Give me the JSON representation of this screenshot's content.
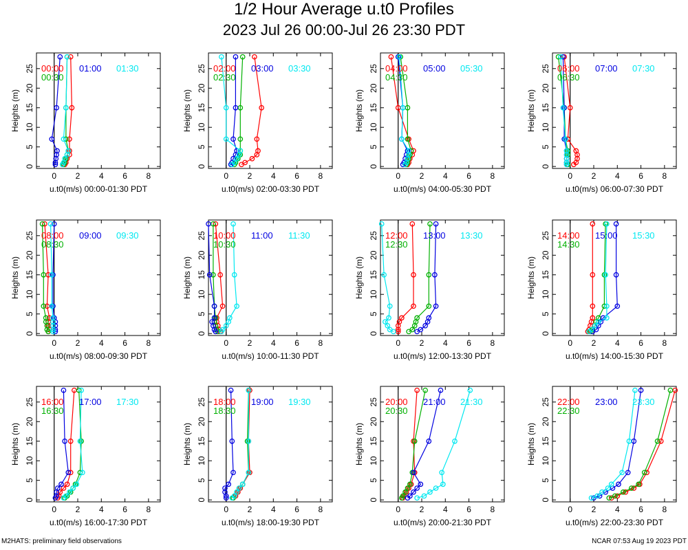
{
  "title": "1/2 Hour Average u.t0 Profiles",
  "subtitle": "2023 Jul 26 00:00-Jul 26 23:30 PDT",
  "footer_left": "M2HATS: preliminary field observations",
  "footer_right": "NCAR 07:53 Aug 19 2023 PDT",
  "colors": {
    "red": "#ff0000",
    "green": "#00b000",
    "blue": "#0000e0",
    "cyan": "#00e8f0"
  },
  "chart_data": [
    {
      "type": "line",
      "xlabel": "u.t0(m/s) 00:00-01:30 PDT",
      "ylabel": "Heights (m)",
      "xlim": [
        -1.5,
        9
      ],
      "ylim": [
        -0.5,
        29
      ],
      "x_ticks": [
        0,
        2,
        4,
        6,
        8
      ],
      "y_ticks": [
        0,
        5,
        10,
        15,
        20,
        25
      ],
      "heights": [
        0.5,
        1,
        2,
        3,
        4,
        7,
        15,
        28
      ],
      "series": [
        {
          "name": "00:00",
          "color": "red",
          "values": [
            0.9,
            1.0,
            1.1,
            1.3,
            1.3,
            1.3,
            1.5,
            1.4
          ]
        },
        {
          "name": "00:30",
          "color": "green",
          "values": [
            0.8,
            0.9,
            1.0,
            1.1,
            1.2,
            1.0,
            1.0,
            1.1
          ]
        },
        {
          "name": "01:00",
          "color": "blue",
          "values": [
            0.1,
            0.1,
            0.15,
            0.2,
            0.25,
            -0.2,
            0.2,
            0.5
          ]
        },
        {
          "name": "01:30",
          "color": "cyan",
          "values": [
            0.7,
            0.8,
            0.9,
            1.1,
            1.2,
            0.8,
            1.0,
            1.1
          ]
        }
      ]
    },
    {
      "type": "line",
      "xlabel": "u.t0(m/s) 02:00-03:30 PDT",
      "ylabel": "Heights (m)",
      "xlim": [
        -1.5,
        9
      ],
      "ylim": [
        -0.5,
        29
      ],
      "x_ticks": [
        0,
        2,
        4,
        6,
        8
      ],
      "y_ticks": [
        0,
        5,
        10,
        15,
        20,
        25
      ],
      "heights": [
        0.5,
        1,
        2,
        3,
        4,
        7,
        15,
        28
      ],
      "series": [
        {
          "name": "02:00",
          "color": "red",
          "values": [
            1.3,
            1.6,
            2.2,
            2.6,
            2.7,
            2.6,
            3.0,
            2.4
          ]
        },
        {
          "name": "02:30",
          "color": "green",
          "values": [
            0.7,
            0.8,
            1.0,
            1.2,
            1.2,
            1.2,
            1.2,
            1.4
          ]
        },
        {
          "name": "03:00",
          "color": "blue",
          "values": [
            0.4,
            0.5,
            0.6,
            0.8,
            0.9,
            0.6,
            0.8,
            0.8
          ]
        },
        {
          "name": "03:30",
          "color": "cyan",
          "values": [
            0.5,
            0.7,
            0.9,
            1.1,
            1.2,
            0.0,
            0.0,
            -0.4
          ]
        }
      ]
    },
    {
      "type": "line",
      "xlabel": "u.t0(m/s) 04:00-05:30 PDT",
      "ylabel": "Heights (m)",
      "xlim": [
        -1.5,
        9
      ],
      "ylim": [
        -0.5,
        29
      ],
      "x_ticks": [
        0,
        2,
        4,
        6,
        8
      ],
      "y_ticks": [
        0,
        5,
        10,
        15,
        20,
        25
      ],
      "heights": [
        0.5,
        1,
        2,
        3,
        4,
        7,
        15,
        28
      ],
      "series": [
        {
          "name": "04:00",
          "color": "red",
          "values": [
            0.8,
            0.9,
            1.0,
            1.2,
            1.3,
            0.9,
            0.0,
            -0.6
          ]
        },
        {
          "name": "04:30",
          "color": "green",
          "values": [
            0.7,
            0.8,
            0.9,
            1.0,
            1.1,
            0.8,
            0.8,
            0.2
          ]
        },
        {
          "name": "05:00",
          "color": "blue",
          "values": [
            0.4,
            0.5,
            0.6,
            0.7,
            0.8,
            0.3,
            0.4,
            0.0
          ]
        },
        {
          "name": "05:30",
          "color": "cyan",
          "values": [
            0.6,
            0.7,
            0.8,
            0.9,
            0.9,
            0.3,
            0.4,
            0.1
          ]
        }
      ]
    },
    {
      "type": "line",
      "xlabel": "u.t0(m/s) 06:00-07:30 PDT",
      "ylabel": "Heights (m)",
      "xlim": [
        -1.5,
        9
      ],
      "ylim": [
        -0.5,
        29
      ],
      "x_ticks": [
        0,
        2,
        4,
        6,
        8
      ],
      "y_ticks": [
        0,
        5,
        10,
        15,
        20,
        25
      ],
      "heights": [
        0.5,
        1,
        2,
        3,
        4,
        7,
        15,
        28
      ],
      "series": [
        {
          "name": "06:00",
          "color": "red",
          "values": [
            0.3,
            0.5,
            0.6,
            0.6,
            0.5,
            -0.2,
            0.0,
            -0.5
          ]
        },
        {
          "name": "06:30",
          "color": "green",
          "values": [
            -0.2,
            -0.3,
            -0.3,
            -0.2,
            -0.2,
            -0.4,
            -0.5,
            -1.0
          ]
        },
        {
          "name": "07:00",
          "color": "blue",
          "values": [
            -0.3,
            -0.3,
            -0.3,
            -0.3,
            -0.3,
            -0.5,
            -0.5,
            -0.6
          ]
        },
        {
          "name": "07:30",
          "color": "cyan",
          "values": [
            -0.3,
            -0.3,
            -0.3,
            -0.3,
            -0.3,
            -0.4,
            -0.6,
            -0.8
          ]
        }
      ]
    },
    {
      "type": "line",
      "xlabel": "u.t0(m/s) 08:00-09:30 PDT",
      "ylabel": "Heights (m)",
      "xlim": [
        -1.5,
        9
      ],
      "ylim": [
        -0.5,
        29
      ],
      "x_ticks": [
        0,
        2,
        4,
        6,
        8
      ],
      "y_ticks": [
        0,
        5,
        10,
        15,
        20,
        25
      ],
      "heights": [
        0.5,
        1,
        2,
        3,
        4,
        7,
        15,
        28
      ],
      "series": [
        {
          "name": "08:00",
          "color": "red",
          "values": [
            -0.5,
            -0.4,
            -0.5,
            -0.5,
            -0.4,
            -0.6,
            -0.5,
            -0.8
          ]
        },
        {
          "name": "08:30",
          "color": "green",
          "values": [
            -0.5,
            -0.6,
            -0.6,
            -0.7,
            -0.7,
            -0.9,
            -0.9,
            -1.0
          ]
        },
        {
          "name": "09:00",
          "color": "blue",
          "values": [
            0.1,
            0.1,
            0.1,
            0.1,
            0.0,
            -0.1,
            -0.1,
            0.0
          ]
        },
        {
          "name": "09:30",
          "color": "cyan",
          "values": [
            -0.1,
            -0.1,
            -0.1,
            -0.1,
            -0.1,
            -0.2,
            -0.2,
            -0.3
          ]
        }
      ]
    },
    {
      "type": "line",
      "xlabel": "u.t0(m/s) 10:00-11:30 PDT",
      "ylabel": "Heights (m)",
      "xlim": [
        -1.5,
        9
      ],
      "ylim": [
        -0.5,
        29
      ],
      "x_ticks": [
        0,
        2,
        4,
        6,
        8
      ],
      "y_ticks": [
        0,
        5,
        10,
        15,
        20,
        25
      ],
      "heights": [
        0.5,
        1,
        2,
        3,
        4,
        7,
        15,
        28
      ],
      "series": [
        {
          "name": "10:00",
          "color": "red",
          "values": [
            -0.5,
            -0.6,
            -0.7,
            -0.8,
            -0.8,
            -0.3,
            -0.5,
            -0.9
          ]
        },
        {
          "name": "10:30",
          "color": "green",
          "values": [
            -0.7,
            -0.8,
            -0.9,
            -1.0,
            -0.9,
            -1.0,
            -1.1,
            -1.1
          ]
        },
        {
          "name": "11:00",
          "color": "blue",
          "values": [
            -0.9,
            -1.0,
            -1.1,
            -1.2,
            -1.0,
            -1.0,
            -1.4,
            -1.5
          ]
        },
        {
          "name": "11:30",
          "color": "cyan",
          "values": [
            -0.4,
            -0.3,
            0.0,
            0.2,
            0.3,
            0.9,
            0.7,
            0.6
          ]
        }
      ]
    },
    {
      "type": "line",
      "xlabel": "u.t0(m/s) 12:00-13:30 PDT",
      "ylabel": "Heights (m)",
      "xlim": [
        -1.5,
        9
      ],
      "ylim": [
        -0.5,
        29
      ],
      "x_ticks": [
        0,
        2,
        4,
        6,
        8
      ],
      "y_ticks": [
        0,
        5,
        10,
        15,
        20,
        25
      ],
      "heights": [
        0.5,
        1,
        2,
        3,
        4,
        7,
        15,
        28
      ],
      "series": [
        {
          "name": "12:00",
          "color": "red",
          "values": [
            0.0,
            0.0,
            0.0,
            0.1,
            0.3,
            1.3,
            1.3,
            1.2
          ]
        },
        {
          "name": "12:30",
          "color": "green",
          "values": [
            0.9,
            1.2,
            1.4,
            1.5,
            1.6,
            2.6,
            2.6,
            2.7
          ]
        },
        {
          "name": "13:00",
          "color": "blue",
          "values": [
            1.6,
            1.9,
            2.3,
            2.5,
            2.6,
            3.2,
            3.1,
            3.2
          ]
        },
        {
          "name": "13:30",
          "color": "cyan",
          "values": [
            -0.4,
            -0.7,
            -0.9,
            -1.1,
            -0.8,
            -0.7,
            -1.2,
            -1.4
          ]
        }
      ]
    },
    {
      "type": "line",
      "xlabel": "u.t0(m/s) 14:00-15:30 PDT",
      "ylabel": "Heights (m)",
      "xlim": [
        -1.5,
        9
      ],
      "ylim": [
        -0.5,
        29
      ],
      "x_ticks": [
        0,
        2,
        4,
        6,
        8
      ],
      "y_ticks": [
        0,
        5,
        10,
        15,
        20,
        25
      ],
      "heights": [
        0.5,
        1,
        2,
        3,
        4,
        7,
        15,
        28
      ],
      "series": [
        {
          "name": "14:00",
          "color": "red",
          "values": [
            1.5,
            1.6,
            1.7,
            1.8,
            1.9,
            1.9,
            1.9,
            1.9
          ]
        },
        {
          "name": "14:30",
          "color": "green",
          "values": [
            1.7,
            1.9,
            2.1,
            2.2,
            2.4,
            2.9,
            2.9,
            3.0
          ]
        },
        {
          "name": "15:00",
          "color": "blue",
          "values": [
            1.9,
            2.2,
            2.4,
            2.6,
            2.8,
            4.0,
            3.9,
            3.9
          ]
        },
        {
          "name": "15:30",
          "color": "cyan",
          "values": [
            1.6,
            1.8,
            2.1,
            2.4,
            3.1,
            3.1,
            3.0,
            3.1
          ]
        }
      ]
    },
    {
      "type": "line",
      "xlabel": "u.t0(m/s) 16:00-17:30 PDT",
      "ylabel": "Heights (m)",
      "xlim": [
        -1.5,
        9
      ],
      "ylim": [
        -0.5,
        29
      ],
      "x_ticks": [
        0,
        2,
        4,
        6,
        8
      ],
      "y_ticks": [
        0,
        5,
        10,
        15,
        20,
        25
      ],
      "heights": [
        0.5,
        1,
        2,
        3,
        4,
        7,
        15,
        28
      ],
      "series": [
        {
          "name": "16:00",
          "color": "red",
          "values": [
            0.3,
            0.4,
            0.5,
            0.8,
            1.1,
            1.4,
            1.4,
            1.7
          ]
        },
        {
          "name": "16:30",
          "color": "green",
          "values": [
            0.9,
            1.1,
            1.4,
            1.6,
            1.8,
            2.2,
            2.3,
            2.1
          ]
        },
        {
          "name": "17:00",
          "color": "blue",
          "values": [
            0.1,
            0.2,
            0.2,
            0.3,
            0.6,
            1.2,
            0.9,
            0.8
          ]
        },
        {
          "name": "17:30",
          "color": "cyan",
          "values": [
            0.8,
            1.0,
            1.3,
            1.6,
            1.9,
            2.4,
            2.2,
            2.3
          ]
        }
      ]
    },
    {
      "type": "line",
      "xlabel": "u.t0(m/s) 18:00-19:30 PDT",
      "ylabel": "Heights (m)",
      "xlim": [
        -1.5,
        9
      ],
      "ylim": [
        -0.5,
        29
      ],
      "x_ticks": [
        0,
        2,
        4,
        6,
        8
      ],
      "y_ticks": [
        0,
        5,
        10,
        15,
        20,
        25
      ],
      "heights": [
        0.5,
        1,
        2,
        3,
        4,
        7,
        15,
        28
      ],
      "series": [
        {
          "name": "18:00",
          "color": "red",
          "values": [
            0.6,
            0.8,
            1.0,
            1.2,
            1.4,
            2.0,
            1.9,
            2.0
          ]
        },
        {
          "name": "18:30",
          "color": "green",
          "values": [
            0.6,
            0.7,
            0.9,
            1.1,
            1.4,
            1.9,
            1.8,
            1.9
          ]
        },
        {
          "name": "19:00",
          "color": "blue",
          "values": [
            0.0,
            0.0,
            -0.1,
            -0.1,
            0.2,
            0.6,
            0.5,
            0.4
          ]
        },
        {
          "name": "19:30",
          "color": "cyan",
          "values": [
            0.5,
            0.7,
            0.9,
            1.1,
            1.4,
            1.9,
            1.9,
            1.9
          ]
        }
      ]
    },
    {
      "type": "line",
      "xlabel": "u.t0(m/s) 20:00-21:30 PDT",
      "ylabel": "Heights (m)",
      "xlim": [
        -1.5,
        9
      ],
      "ylim": [
        -0.5,
        29
      ],
      "x_ticks": [
        0,
        2,
        4,
        6,
        8
      ],
      "y_ticks": [
        0,
        5,
        10,
        15,
        20,
        25
      ],
      "heights": [
        0.5,
        1,
        2,
        3,
        4,
        7,
        15,
        28
      ],
      "series": [
        {
          "name": "20:00",
          "color": "red",
          "values": [
            0.4,
            0.5,
            0.7,
            0.9,
            1.1,
            1.4,
            1.3,
            1.6
          ]
        },
        {
          "name": "20:30",
          "color": "green",
          "values": [
            0.3,
            0.4,
            0.6,
            0.8,
            1.0,
            1.2,
            1.4,
            2.3
          ]
        },
        {
          "name": "21:00",
          "color": "blue",
          "values": [
            0.8,
            1.0,
            1.3,
            1.6,
            1.9,
            1.3,
            2.6,
            3.6
          ]
        },
        {
          "name": "21:30",
          "color": "cyan",
          "values": [
            1.6,
            2.2,
            2.7,
            3.2,
            3.8,
            3.7,
            4.8,
            6.1
          ]
        }
      ]
    },
    {
      "type": "line",
      "xlabel": "u.t0(m/s) 22:00-23:30 PDT",
      "ylabel": "Heights (m)",
      "xlim": [
        -1.5,
        9
      ],
      "ylim": [
        -0.5,
        29
      ],
      "x_ticks": [
        0,
        2,
        4,
        6,
        8
      ],
      "y_ticks": [
        0,
        5,
        10,
        15,
        20,
        25
      ],
      "heights": [
        0.5,
        1,
        2,
        3,
        4,
        7,
        15,
        28
      ],
      "series": [
        {
          "name": "22:00",
          "color": "red",
          "values": [
            3.5,
            4.0,
            4.7,
            5.4,
            5.9,
            6.5,
            7.7,
            8.9
          ]
        },
        {
          "name": "22:30",
          "color": "green",
          "values": [
            3.3,
            3.8,
            4.5,
            5.2,
            5.8,
            6.3,
            7.4,
            8.5
          ]
        },
        {
          "name": "23:00",
          "color": "blue",
          "values": [
            2.0,
            2.5,
            3.0,
            3.6,
            4.1,
            4.9,
            5.4,
            6.0
          ]
        },
        {
          "name": "23:30",
          "color": "cyan",
          "values": [
            1.8,
            2.3,
            2.7,
            3.2,
            3.5,
            4.4,
            5.0,
            5.5
          ]
        }
      ]
    }
  ]
}
